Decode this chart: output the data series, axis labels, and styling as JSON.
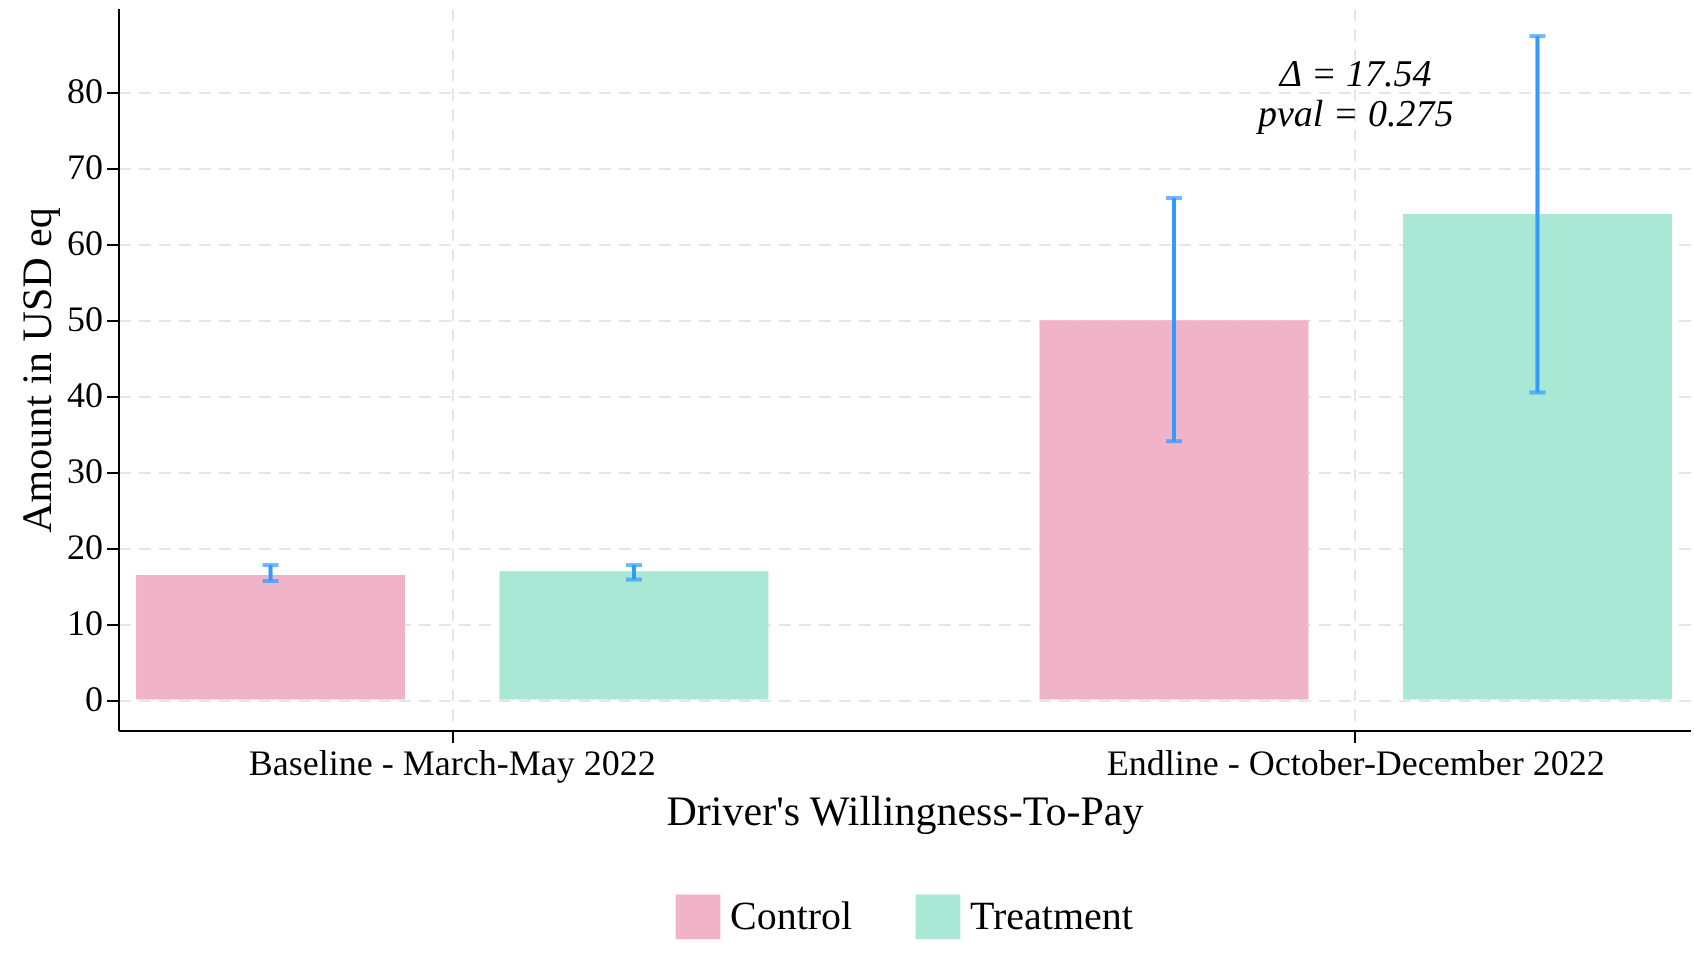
{
  "chart_data": {
    "type": "bar",
    "xlabel": "Driver's Willingness-To-Pay",
    "ylabel": "Amount in USD eq",
    "categories": [
      "Baseline - March-May 2022",
      "Endline - October-December 2022"
    ],
    "series": [
      {
        "name": "Control",
        "color": "#f0b3c8",
        "values": [
          16.4,
          49.9
        ],
        "errors": [
          [
            15.6,
            17.7
          ],
          [
            34.0,
            66.0
          ]
        ]
      },
      {
        "name": "Treatment",
        "color": "#a8e8d4",
        "values": [
          16.9,
          63.9
        ],
        "errors": [
          [
            15.8,
            17.7
          ],
          [
            40.4,
            87.3
          ]
        ]
      }
    ],
    "ylim": [
      -4,
      91
    ],
    "yticks": [
      0,
      10,
      20,
      30,
      40,
      50,
      60,
      70,
      80
    ],
    "grid": true,
    "legend": "bottom",
    "annotations": [
      "Δ = 17.54",
      "pval = 0.275"
    ]
  }
}
